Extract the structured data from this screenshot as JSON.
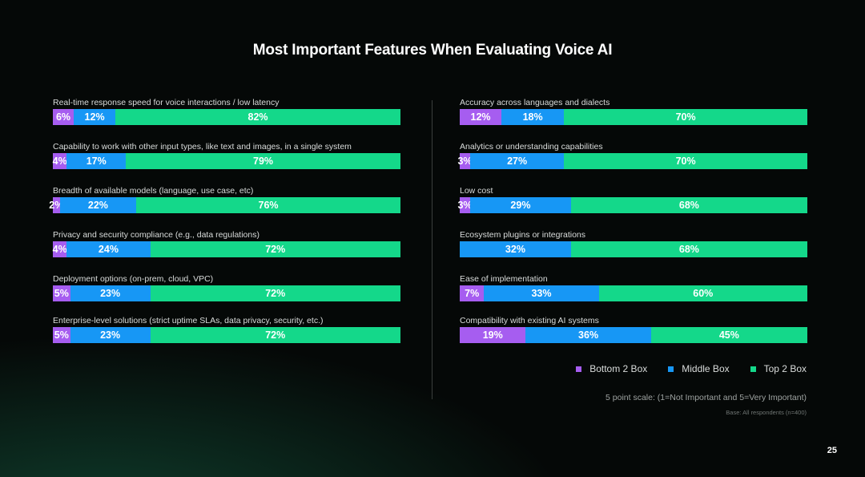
{
  "title": "Most Important Features When Evaluating Voice AI",
  "colors": {
    "bottom": "#a65df0",
    "middle": "#1797f5",
    "top": "#14d88a"
  },
  "legend": [
    "Bottom 2 Box",
    "Middle Box",
    "Top 2 Box"
  ],
  "scale_note": "5 point scale: (1=Not Important and 5=Very Important)",
  "base_note": "Base: All respondents (n=400)",
  "page_number": "25",
  "chart_data": {
    "type": "bar",
    "stacked": true,
    "orientation": "horizontal",
    "unit": "%",
    "series_names": [
      "Bottom 2 Box",
      "Middle Box",
      "Top 2 Box"
    ],
    "left": [
      {
        "label": "Real-time response speed for voice interactions / low latency",
        "bottom": 6,
        "middle": 12,
        "top": 82
      },
      {
        "label": "Capability to work with other input types, like text and images, in a single system",
        "bottom": 4,
        "middle": 17,
        "top": 79
      },
      {
        "label": "Breadth of available models (language, use case, etc)",
        "bottom": 2,
        "middle": 22,
        "top": 76
      },
      {
        "label": "Privacy and security compliance (e.g., data regulations)",
        "bottom": 4,
        "middle": 24,
        "top": 72
      },
      {
        "label": "Deployment options (on-prem, cloud, VPC)",
        "bottom": 5,
        "middle": 23,
        "top": 72
      },
      {
        "label": "Enterprise-level solutions (strict uptime SLAs, data privacy, security, etc.)",
        "bottom": 5,
        "middle": 23,
        "top": 72
      }
    ],
    "right": [
      {
        "label": "Accuracy across languages and dialects",
        "bottom": 12,
        "middle": 18,
        "top": 70
      },
      {
        "label": "Analytics or understanding capabilities",
        "bottom": 3,
        "middle": 27,
        "top": 70
      },
      {
        "label": "Low cost",
        "bottom": 3,
        "middle": 29,
        "top": 68
      },
      {
        "label": "Ecosystem plugins or integrations",
        "bottom": 0,
        "middle": 32,
        "top": 68
      },
      {
        "label": "Ease of implementation",
        "bottom": 7,
        "middle": 33,
        "top": 60
      },
      {
        "label": "Compatibility with existing AI systems",
        "bottom": 19,
        "middle": 36,
        "top": 45
      }
    ]
  }
}
